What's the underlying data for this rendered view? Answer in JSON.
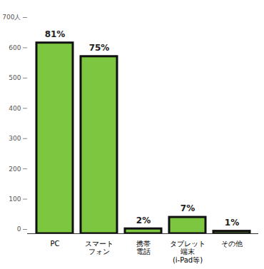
{
  "chart_data": {
    "type": "bar",
    "categories": [
      "PC",
      "スマート\nフォン",
      "携帯\n電話",
      "タブレット\n端末\n(i-Pad等)",
      "その他"
    ],
    "values": [
      630,
      585,
      16,
      54,
      8
    ],
    "percent_labels": [
      "81%",
      "75%",
      "2%",
      "7%",
      "1%"
    ],
    "color": "#7dc63f",
    "ylim": [
      0,
      700
    ],
    "yticks": [
      0,
      100,
      200,
      300,
      400,
      500,
      600,
      {
        "value": 700,
        "label": "700人"
      }
    ],
    "grid": false
  }
}
